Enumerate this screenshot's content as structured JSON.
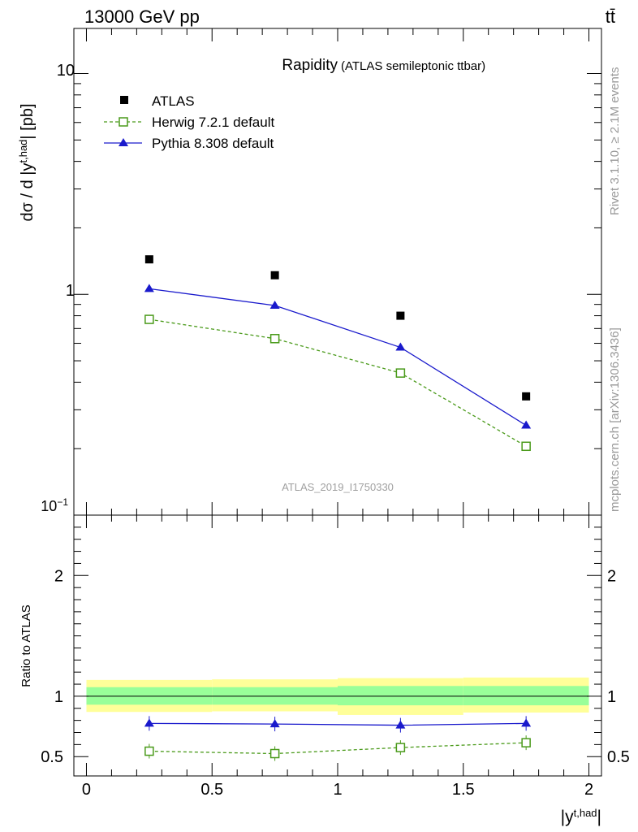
{
  "header": {
    "left": "13000 GeV pp",
    "right": "tt̄"
  },
  "side": {
    "rivet": "Rivet 3.1.10, ≥ 2.1M events",
    "mcplots": "mcplots.cern.ch [arXiv:1306.3436]"
  },
  "chart_data": [
    {
      "type": "line",
      "title": "Rapidity",
      "subtitle": "(ATLAS semileptonic ttbar)",
      "analysis_label": "ATLAS_2019_I1750330",
      "ylabel": "dσ / d |y^{t,had}| [pb]",
      "yscale": "log",
      "ylim": [
        0.1,
        16
      ],
      "xlim": [
        -0.05,
        2.05
      ],
      "y_tick_labels": [
        "10",
        "1",
        "10⁻¹"
      ],
      "legend_position": "top-left",
      "x": [
        0.25,
        0.75,
        1.25,
        1.75
      ],
      "series": [
        {
          "name": "ATLAS",
          "values": [
            1.44,
            1.22,
            0.8,
            0.345
          ],
          "color": "#000000",
          "marker": "square-filled"
        },
        {
          "name": "Herwig 7.2.1 default",
          "values": [
            0.77,
            0.63,
            0.44,
            0.205
          ],
          "color": "#4a9a1a",
          "marker": "square-open",
          "linestyle": "dashed"
        },
        {
          "name": "Pythia 8.308 default",
          "values": [
            1.06,
            0.89,
            0.575,
            0.255
          ],
          "color": "#1a1acc",
          "marker": "triangle",
          "linestyle": "solid"
        }
      ]
    },
    {
      "type": "line",
      "ylabel": "Ratio to ATLAS",
      "xlabel": "|y^{t,had}|",
      "ylim": [
        0.34,
        2.5
      ],
      "xlim": [
        -0.05,
        2.05
      ],
      "x_tick_labels": [
        "0",
        "0.5",
        "1",
        "1.5",
        "2"
      ],
      "y_tick_labels": [
        "0.5",
        "1",
        "2"
      ],
      "x": [
        0.25,
        0.75,
        1.25,
        1.75
      ],
      "bands": {
        "bins": [
          [
            0,
            0.5
          ],
          [
            0.5,
            1
          ],
          [
            1,
            1.5
          ],
          [
            1.5,
            2
          ]
        ],
        "inner": [
          [
            0.93,
            1.075
          ],
          [
            0.93,
            1.075
          ],
          [
            0.925,
            1.085
          ],
          [
            0.925,
            1.085
          ]
        ],
        "outer": [
          [
            0.87,
            1.135
          ],
          [
            0.875,
            1.14
          ],
          [
            0.845,
            1.15
          ],
          [
            0.865,
            1.155
          ]
        ],
        "inner_color": "#99ff99",
        "outer_color": "#ffff99"
      },
      "series": [
        {
          "name": "Herwig 7.2.1 default",
          "values": [
            0.545,
            0.525,
            0.575,
            0.615
          ],
          "color": "#4a9a1a"
        },
        {
          "name": "Pythia 8.308 default",
          "values": [
            0.775,
            0.77,
            0.76,
            0.775
          ],
          "color": "#1a1acc"
        }
      ]
    }
  ]
}
